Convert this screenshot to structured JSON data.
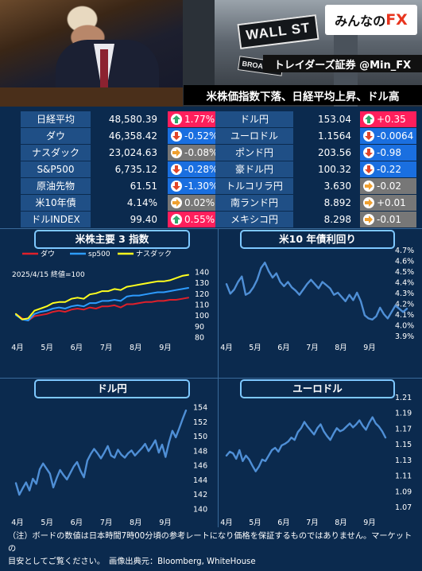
{
  "header": {
    "logo_text_a": "みんなの",
    "logo_text_b": "FX",
    "brand": "トレイダーズ証券 @Min_FX",
    "headline": "米株価指数下落、日経平均上昇、ドル高",
    "wall_sign": "WALL ST",
    "broad_sign": "BROAD ST"
  },
  "colors": {
    "up_red": "#ff1f5c",
    "down_blue": "#1a6fe0",
    "flat_gray": "#777777",
    "green_arrow": "#2fa86a",
    "red_arrow": "#e0452a",
    "orange_arrow": "#f0a030",
    "name_bg": "#1f4f86",
    "line_blue": "#4f8fd6"
  },
  "table": {
    "left": [
      {
        "name": "日経平均",
        "value": "48,580.39",
        "change": "1.77%",
        "dir": "up"
      },
      {
        "name": "ダウ",
        "value": "46,358.42",
        "change": "-0.52%",
        "dir": "down"
      },
      {
        "name": "ナスダック",
        "value": "23,024.63",
        "change": "-0.08%",
        "dir": "flat"
      },
      {
        "name": "S&P500",
        "value": "6,735.12",
        "change": "-0.28%",
        "dir": "down"
      },
      {
        "name": "原油先物",
        "value": "61.51",
        "change": "-1.30%",
        "dir": "down"
      },
      {
        "name": "米10年債",
        "value": "4.14%",
        "change": "0.02%",
        "dir": "flat"
      },
      {
        "name": "ドルINDEX",
        "value": "99.40",
        "change": "0.55%",
        "dir": "up"
      }
    ],
    "right": [
      {
        "name": "ドル円",
        "value": "153.04",
        "change": "+0.35",
        "dir": "up"
      },
      {
        "name": "ユーロドル",
        "value": "1.1564",
        "change": "-0.0064",
        "dir": "down"
      },
      {
        "name": "ポンド円",
        "value": "203.56",
        "change": "-0.98",
        "dir": "down"
      },
      {
        "name": "豪ドル円",
        "value": "100.32",
        "change": "-0.22",
        "dir": "down"
      },
      {
        "name": "トルコリラ円",
        "value": "3.630",
        "change": "-0.02",
        "dir": "flat"
      },
      {
        "name": "南ランド円",
        "value": "8.892",
        "change": "+0.01",
        "dir": "flat"
      },
      {
        "name": "メキシコ円",
        "value": "8.298",
        "change": "-0.01",
        "dir": "flat"
      }
    ]
  },
  "chart_data": [
    {
      "type": "line",
      "title": "米株主要 3 指数",
      "annotation": "2025/4/15 終値=100",
      "x_labels": [
        "4月",
        "5月",
        "6月",
        "7月",
        "8月",
        "9月"
      ],
      "y_ticks": [
        80,
        90,
        100,
        110,
        120,
        130,
        140
      ],
      "ylim": [
        76,
        144
      ],
      "legend_position": "top",
      "series": [
        {
          "name": "ダウ",
          "color": "#e0202a",
          "values": [
            101,
            97,
            95,
            99,
            100,
            101,
            103,
            104,
            103,
            105,
            106,
            105,
            107,
            106,
            108,
            108,
            109,
            107,
            110,
            110,
            111,
            112,
            112,
            113,
            113,
            114,
            114,
            115,
            116
          ]
        },
        {
          "name": "sp500",
          "color": "#2d9cff",
          "values": [
            100,
            96,
            95,
            101,
            103,
            104,
            106,
            107,
            106,
            108,
            109,
            108,
            111,
            111,
            113,
            113,
            114,
            113,
            117,
            118,
            118,
            119,
            120,
            121,
            121,
            122,
            123,
            124,
            125
          ]
        },
        {
          "name": "ナスダック",
          "color": "#ffff1e",
          "values": [
            101,
            96,
            97,
            104,
            106,
            108,
            111,
            112,
            112,
            115,
            116,
            115,
            119,
            120,
            122,
            122,
            124,
            123,
            126,
            127,
            128,
            129,
            130,
            131,
            131,
            132,
            134,
            136,
            137
          ]
        }
      ]
    },
    {
      "type": "line",
      "title": "米10 年債利回り",
      "x_labels": [
        "4月",
        "5月",
        "6月",
        "7月",
        "8月",
        "9月"
      ],
      "y_ticks": [
        "3.9%",
        "4.0%",
        "4.1%",
        "4.2%",
        "4.3%",
        "4.4%",
        "4.5%",
        "4.6%",
        "4.7%"
      ],
      "ylim": [
        3.9,
        4.7
      ],
      "series": [
        {
          "name": "",
          "color": "#4f8fd6",
          "values": [
            4.38,
            4.29,
            4.33,
            4.4,
            4.45,
            4.28,
            4.3,
            4.35,
            4.42,
            4.53,
            4.58,
            4.5,
            4.44,
            4.48,
            4.4,
            4.36,
            4.4,
            4.35,
            4.32,
            4.28,
            4.33,
            4.38,
            4.42,
            4.38,
            4.34,
            4.4,
            4.37,
            4.34,
            4.28,
            4.3,
            4.26,
            4.22,
            4.28,
            4.23,
            4.3,
            4.22,
            4.09,
            4.06,
            4.05,
            4.08,
            4.16,
            4.1,
            4.06,
            4.12,
            4.18,
            4.15,
            4.12,
            4.15
          ]
        }
      ]
    },
    {
      "type": "line",
      "title": "ドル円",
      "x_labels": [
        "4月",
        "5月",
        "6月",
        "7月",
        "8月",
        "9月"
      ],
      "y_ticks": [
        140,
        142,
        144,
        146,
        148,
        150,
        152,
        154
      ],
      "ylim": [
        139.5,
        154.5
      ],
      "series": [
        {
          "name": "",
          "color": "#4f8fd6",
          "values": [
            143.5,
            141.9,
            142.8,
            143.6,
            142.5,
            144.1,
            143.4,
            145.4,
            146.2,
            145.5,
            144.8,
            142.9,
            144.2,
            145.3,
            144.6,
            144.0,
            144.9,
            145.8,
            146.4,
            145.2,
            144.3,
            146.6,
            147.5,
            148.2,
            147.6,
            146.9,
            147.7,
            148.6,
            147.3,
            147.0,
            148.1,
            147.4,
            147.0,
            147.6,
            148.0,
            147.3,
            147.8,
            148.3,
            148.9,
            147.9,
            148.6,
            149.4,
            147.7,
            148.8,
            147.1,
            149.1,
            150.7,
            149.8,
            151.0,
            152.3,
            153.5
          ]
        }
      ]
    },
    {
      "type": "line",
      "title": "ユーロドル",
      "x_labels": [
        "4月",
        "5月",
        "6月",
        "7月",
        "8月",
        "9月"
      ],
      "y_ticks": [
        "1.07",
        "1.09",
        "1.11",
        "1.13",
        "1.15",
        "1.17",
        "1.19",
        "1.21"
      ],
      "ylim": [
        1.065,
        1.215
      ],
      "series": [
        {
          "name": "",
          "color": "#4f8fd6",
          "values": [
            1.135,
            1.14,
            1.138,
            1.131,
            1.142,
            1.128,
            1.135,
            1.13,
            1.122,
            1.115,
            1.121,
            1.13,
            1.128,
            1.135,
            1.142,
            1.145,
            1.14,
            1.148,
            1.15,
            1.153,
            1.158,
            1.155,
            1.165,
            1.17,
            1.178,
            1.172,
            1.167,
            1.162,
            1.17,
            1.175,
            1.166,
            1.16,
            1.155,
            1.163,
            1.17,
            1.166,
            1.168,
            1.172,
            1.176,
            1.171,
            1.175,
            1.18,
            1.173,
            1.168,
            1.177,
            1.184,
            1.176,
            1.172,
            1.166,
            1.158
          ]
        }
      ]
    }
  ],
  "footer": {
    "line1": "（注）ボードの数値は日本時間7時00分頃の参考レートになり価格を保証するものではありません。マーケットの",
    "line2": "目安としてご覧ください。　画像出典元：Bloomberg, WhiteHouse"
  }
}
